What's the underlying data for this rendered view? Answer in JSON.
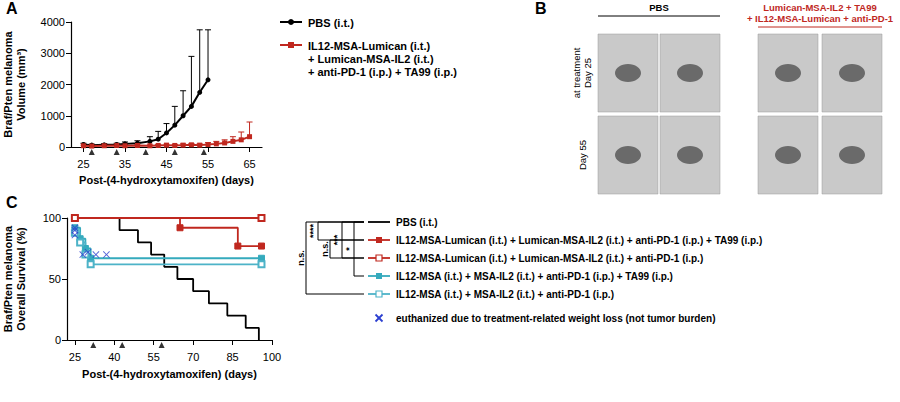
{
  "chart_data": [
    {
      "title": "A",
      "type": "line",
      "x_label": "Post-(4-hydroxytamoxifen) (days)",
      "y_label": "Braf/Pten melanoma\nVolume (mm³)",
      "xlim": [
        22,
        68
      ],
      "xticks": [
        25,
        35,
        45,
        55,
        65
      ],
      "ylim": [
        0,
        4000
      ],
      "yticks": [
        0,
        1000,
        2000,
        3000,
        4000
      ],
      "grid": false,
      "treatment_days": [
        27,
        33,
        40,
        47,
        54
      ],
      "series": [
        {
          "name": "PBS (i.t.)",
          "color": "#000000",
          "marker": "circle",
          "x": [
            25,
            27,
            30,
            33,
            35,
            38,
            41,
            43,
            45,
            47,
            49,
            51,
            53,
            55
          ],
          "values": [
            80,
            60,
            70,
            80,
            100,
            120,
            180,
            250,
            450,
            700,
            1000,
            1300,
            1750,
            2150
          ],
          "error_upper": [
            40,
            30,
            40,
            40,
            60,
            80,
            150,
            250,
            300,
            600,
            800,
            1600,
            2000,
            1600
          ]
        },
        {
          "name": "IL12-MSA-Lumican (i.t.)\n+ Lumican-MSA-IL2 (i.t.)\n+ anti-PD-1 (i.p.) + TA99 (i.p.)",
          "color": "#c0281f",
          "marker": "square",
          "x": [
            25,
            27,
            30,
            33,
            35,
            38,
            41,
            43,
            45,
            47,
            49,
            51,
            53,
            55,
            57,
            59,
            61,
            63,
            65
          ],
          "values": [
            40,
            30,
            40,
            50,
            40,
            50,
            40,
            50,
            60,
            50,
            60,
            70,
            60,
            80,
            100,
            130,
            180,
            230,
            330
          ],
          "error_upper": [
            20,
            20,
            20,
            20,
            20,
            20,
            20,
            30,
            30,
            30,
            40,
            40,
            40,
            60,
            80,
            100,
            150,
            250,
            470
          ]
        }
      ]
    },
    {
      "title": "C",
      "type": "step",
      "x_label": "Post-(4-hydroxytamoxifen) (days)",
      "y_label": "Braf/Pten melanoma\nOverall Survival (%)",
      "xlim": [
        22,
        100
      ],
      "xticks": [
        25,
        40,
        55,
        70,
        85,
        100
      ],
      "ylim": [
        0,
        100
      ],
      "yticks": [
        0,
        50,
        100
      ],
      "grid": false,
      "treatment_days": [
        32,
        43,
        58
      ],
      "series": [
        {
          "name": "PBS (i.t.)",
          "color": "#000000",
          "marker": "none",
          "x": [
            25,
            42,
            49,
            54,
            59,
            64,
            70,
            76,
            83,
            90,
            95
          ],
          "values": [
            100,
            90,
            80,
            70,
            60,
            50,
            40,
            30,
            20,
            10,
            0
          ]
        },
        {
          "name": "IL12-MSA-Lumican (i.t.) + Lumican-MSA-IL2 (i.t.) + anti-PD-1 (i.p.) + TA99 (i.p.)",
          "color": "#c0281f",
          "marker": "square",
          "x": [
            25,
            65,
            87,
            96
          ],
          "values": [
            100,
            92,
            77,
            77
          ]
        },
        {
          "name": "IL12-MSA-Lumican (i.t.) + Lumican-MSA-IL2 (i.t.) + anti-PD-1 (i.p.)",
          "color": "#c0281f",
          "marker": "open_square",
          "x": [
            25,
            96
          ],
          "values": [
            100,
            100
          ]
        },
        {
          "name": "IL12-MSA (i.t.) + MSA-IL2 (i.t.) + anti-PD-1 (i.p.) + TA99 (i.p.)",
          "color": "#35aabd",
          "marker": "square",
          "x": [
            25,
            27,
            29,
            31,
            96
          ],
          "values": [
            92,
            83,
            75,
            67,
            67
          ]
        },
        {
          "name": "IL12-MSA (i.t.) + MSA-IL2 (i.t.) + anti-PD-1 (i.p.)",
          "color": "#4db3c8",
          "marker": "open_square",
          "x": [
            25,
            27,
            29,
            31,
            96
          ],
          "values": [
            88,
            80,
            70,
            62,
            62
          ]
        },
        {
          "name": "euthanized due to treatment-related weight loss (not tumor burden)",
          "type": "scatter",
          "color": "#2c3fd0",
          "marker": "x",
          "x": [
            25,
            25,
            25,
            28,
            30,
            33,
            37
          ],
          "values": [
            92,
            90,
            86,
            70,
            72,
            70,
            70
          ]
        }
      ],
      "comparisons": [
        {
          "label": "n.s.",
          "between": [
            0,
            4
          ]
        },
        {
          "label": "****",
          "between": [
            0,
            1
          ]
        },
        {
          "label": "n.s.",
          "between": [
            1,
            2
          ]
        },
        {
          "label": "***",
          "between": [
            0,
            2
          ]
        },
        {
          "label": "*",
          "between": [
            0,
            3
          ]
        }
      ]
    }
  ],
  "panel_b": {
    "title": "B",
    "columns": [
      {
        "label": "PBS",
        "color": "#000000"
      },
      {
        "label": "Lumican-MSA-IL2 + TA99\n+ IL12-MSA-Lumican + anti-PD-1",
        "color": "#c0281f"
      }
    ],
    "rows": [
      "at treatment\nDay 25",
      "Day 55"
    ]
  }
}
